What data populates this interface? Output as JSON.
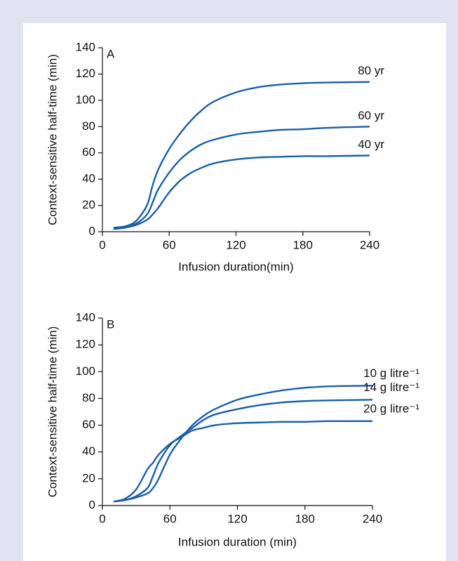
{
  "chart_data": [
    {
      "type": "line",
      "label": "A",
      "x_label": "Infusion duration(min)",
      "y_label": "Context-sensitive half-time (min)",
      "x": [
        10,
        20,
        30,
        40,
        45,
        50,
        60,
        70,
        80,
        90,
        100,
        120,
        140,
        160,
        180,
        200,
        240
      ],
      "series": [
        {
          "name": "80 yr",
          "color": "#1a5ea8",
          "values": [
            3,
            4,
            8,
            20,
            35,
            47,
            63,
            75,
            85,
            93,
            99,
            106,
            110,
            112,
            113,
            113.5,
            114
          ]
        },
        {
          "name": "60 yr",
          "color": "#1a5ea8",
          "values": [
            3,
            4,
            6,
            13,
            22,
            32,
            45,
            55,
            62,
            67,
            70,
            74,
            76,
            77.5,
            78,
            79,
            80
          ]
        },
        {
          "name": "40 yr",
          "color": "#1a5ea8",
          "values": [
            2,
            3,
            5,
            9,
            13,
            18,
            30,
            39,
            45,
            49,
            52,
            55,
            56.5,
            57,
            57.5,
            57.5,
            58
          ]
        }
      ],
      "xlim": [
        0,
        240
      ],
      "xticks": [
        0,
        60,
        120,
        180,
        240
      ],
      "ylim": [
        0,
        140
      ],
      "yticks": [
        0,
        20,
        40,
        60,
        80,
        100,
        120,
        140
      ]
    },
    {
      "type": "line",
      "label": "B",
      "x_label": "Infusion duration (min)",
      "y_label": "Context-sensitive half-time  (min)",
      "x": [
        10,
        20,
        30,
        40,
        45,
        50,
        60,
        70,
        80,
        90,
        100,
        120,
        140,
        160,
        180,
        200,
        240
      ],
      "series": [
        {
          "name": "10 g litre⁻¹",
          "color": "#1a5ea8",
          "values": [
            3,
            4,
            6,
            9,
            13,
            20,
            38,
            50,
            60,
            67,
            72,
            79,
            83,
            86,
            88,
            89,
            89.5
          ]
        },
        {
          "name": "14 g litre⁻¹",
          "color": "#1a5ea8",
          "values": [
            3,
            4,
            7,
            13,
            22,
            32,
            45,
            52,
            58,
            64,
            68,
            72,
            75,
            77,
            78,
            78.5,
            79
          ]
        },
        {
          "name": "20 g litre⁻¹",
          "color": "#1a5ea8",
          "values": [
            3,
            5,
            12,
            27,
            32,
            38,
            46,
            51,
            56,
            58,
            60,
            61.5,
            62,
            62.5,
            62.5,
            63,
            63
          ]
        }
      ],
      "xlim": [
        0,
        240
      ],
      "xticks": [
        0,
        60,
        120,
        180,
        240
      ],
      "ylim": [
        0,
        140
      ],
      "yticks": [
        0,
        20,
        40,
        60,
        80,
        100,
        120,
        140
      ]
    }
  ]
}
